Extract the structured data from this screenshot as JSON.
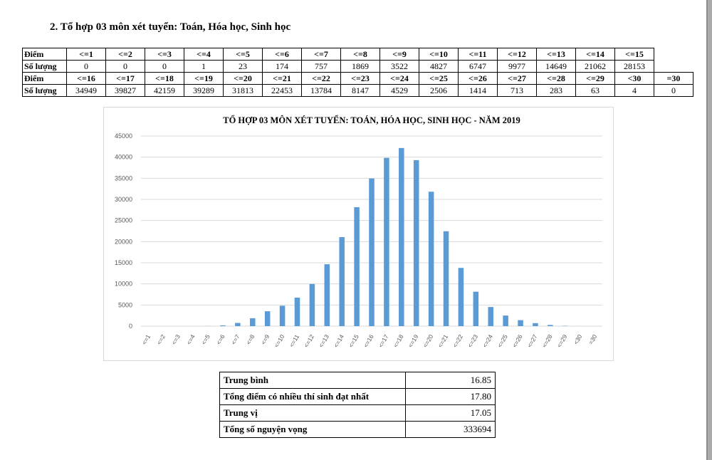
{
  "heading": "2. Tổ hợp 03 môn xét tuyển: Toán, Hóa học, Sinh học",
  "score_table": {
    "label_diem": "Điểm",
    "label_soluong": "Số lượng",
    "row1_headers": [
      "<=1",
      "<=2",
      "<=3",
      "<=4",
      "<=5",
      "<=6",
      "<=7",
      "<=8",
      "<=9",
      "<=10",
      "<=11",
      "<=12",
      "<=13",
      "<=14",
      "<=15"
    ],
    "row1_values": [
      "0",
      "0",
      "0",
      "1",
      "23",
      "174",
      "757",
      "1869",
      "3522",
      "4827",
      "6747",
      "9977",
      "14649",
      "21062",
      "28153"
    ],
    "row2_headers": [
      "<=16",
      "<=17",
      "<=18",
      "<=19",
      "<=20",
      "<=21",
      "<=22",
      "<=23",
      "<=24",
      "<=25",
      "<=26",
      "<=27",
      "<=28",
      "<=29",
      "<30",
      "=30"
    ],
    "row2_values": [
      "34949",
      "39827",
      "42159",
      "39289",
      "31813",
      "22453",
      "13784",
      "8147",
      "4529",
      "2506",
      "1414",
      "713",
      "283",
      "63",
      "4",
      "0"
    ]
  },
  "chart_data": {
    "type": "bar",
    "title": "TỔ HỢP 03 MÔN XÉT TUYỂN: TOÁN, HÓA HỌC, SINH HỌC - NĂM 2019",
    "categories": [
      "<=1",
      "<=2",
      "<=3",
      "<=4",
      "<=5",
      "<=6",
      "<=7",
      "<=8",
      "<=9",
      "<=10",
      "<=11",
      "<=12",
      "<=13",
      "<=14",
      "<=15",
      "<=16",
      "<=17",
      "<=18",
      "<=19",
      "<=20",
      "<=21",
      "<=22",
      "<=23",
      "<=24",
      "<=25",
      "<=26",
      "<=27",
      "<=28",
      "<=29",
      "<30",
      "=30"
    ],
    "values": [
      0,
      0,
      0,
      1,
      23,
      174,
      757,
      1869,
      3522,
      4827,
      6747,
      9977,
      14649,
      21062,
      28153,
      34949,
      39827,
      42159,
      39289,
      31813,
      22453,
      13784,
      8147,
      4529,
      2506,
      1414,
      713,
      283,
      63,
      4,
      0
    ],
    "ylim": [
      0,
      45000
    ],
    "yticks": [
      0,
      5000,
      10000,
      15000,
      20000,
      25000,
      30000,
      35000,
      40000,
      45000
    ],
    "ytick_labels": [
      "0",
      "5000",
      "10000",
      "15000",
      "20000",
      "25000",
      "30000",
      "35000",
      "40000",
      "45000"
    ],
    "grid": true,
    "bar_color": "#5b9bd5",
    "xlabel": "",
    "ylabel": ""
  },
  "stats": [
    {
      "label": "Trung bình",
      "value": "16.85"
    },
    {
      "label": "Tổng điểm có nhiều thí sinh đạt nhất",
      "value": "17.80"
    },
    {
      "label": "Trung vị",
      "value": "17.05"
    },
    {
      "label": "Tổng số nguyện vọng",
      "value": "333694"
    }
  ]
}
